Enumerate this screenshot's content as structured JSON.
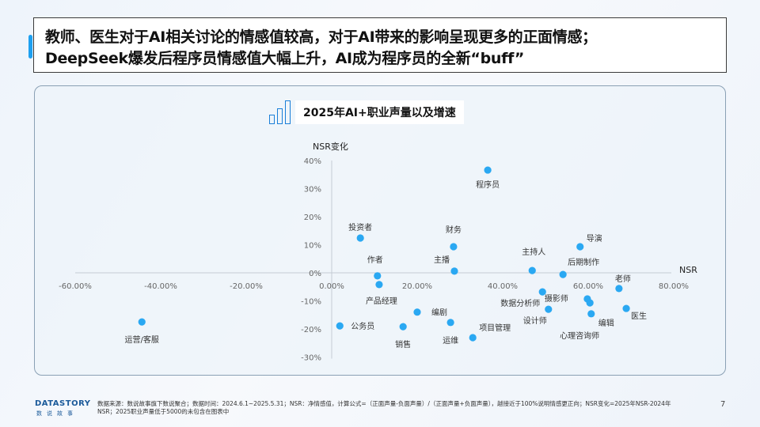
{
  "header": {
    "title_line1": "教师、医生对于AI相关讨论的情感值较高，对于AI带来的影响呈现更多的正面情感；",
    "title_line2": "DeepSeek爆发后程序员情感值大幅上升，AI成为程序员的全新“buff”"
  },
  "chart_data": {
    "type": "scatter",
    "title": "2025年AI+职业声量以及增速",
    "xlabel": "NSR",
    "ylabel": "NSR变化",
    "xlim": [
      -60,
      80
    ],
    "ylim": [
      -30,
      40
    ],
    "x_ticks": [
      "-60.00%",
      "-40.00%",
      "-20.00%",
      "0.00%",
      "20.00%",
      "40.00%",
      "60.00%",
      "80.00%"
    ],
    "x_tick_values": [
      -60,
      -40,
      -20,
      0,
      20,
      40,
      60,
      80
    ],
    "y_ticks": [
      "40%",
      "30%",
      "20%",
      "10%",
      "0%",
      "-10%",
      "-20%",
      "-30%"
    ],
    "y_tick_values": [
      40,
      30,
      20,
      10,
      0,
      -10,
      -20,
      -30
    ],
    "grid": false,
    "point_color": "#2aa8f2",
    "points": [
      {
        "label": "程序员",
        "x": 36.5,
        "y": 36.6
      },
      {
        "label": "投资者",
        "x": 6.7,
        "y": 12.4
      },
      {
        "label": "财务",
        "x": 28.5,
        "y": 9.3
      },
      {
        "label": "主播",
        "x": 28.7,
        "y": 0.6
      },
      {
        "label": "作者",
        "x": 10.7,
        "y": -1.1
      },
      {
        "label": "产品经理",
        "x": 11.1,
        "y": -4.2
      },
      {
        "label": "编剧",
        "x": 20.0,
        "y": -14.0
      },
      {
        "label": "公务员",
        "x": 1.9,
        "y": -18.9
      },
      {
        "label": "销售",
        "x": 16.7,
        "y": -19.2
      },
      {
        "label": "运维",
        "x": 27.8,
        "y": -17.7
      },
      {
        "label": "项目管理",
        "x": 33.0,
        "y": -23.1
      },
      {
        "label": "主持人",
        "x": 46.9,
        "y": 0.8
      },
      {
        "label": "后期制作",
        "x": 54.1,
        "y": -0.6
      },
      {
        "label": "导演",
        "x": 58.1,
        "y": 9.3
      },
      {
        "label": "数据分析师",
        "x": 49.3,
        "y": -6.8
      },
      {
        "label": "设计师",
        "x": 50.7,
        "y": -13.0
      },
      {
        "label": "摄影师",
        "x": 59.8,
        "y": -9.3
      },
      {
        "label": "心理咨询师",
        "x": 60.4,
        "y": -10.7
      },
      {
        "label": "编辑",
        "x": 60.7,
        "y": -14.6
      },
      {
        "label": "老师",
        "x": 67.2,
        "y": -5.6
      },
      {
        "label": "医生",
        "x": 68.9,
        "y": -12.7
      },
      {
        "label": "运营/客服",
        "x": -44.4,
        "y": -17.5
      }
    ]
  },
  "footer": {
    "logo": "DATASTORY",
    "logo_sub": "数说故事",
    "note": "数据来源：数说故事旗下数说聚合；数据时间：2024.6.1~2025.5.31；NSR：净情感值，计算公式=（正面声量-负面声量）/（正面声量+负面声量），越接近于100%说明情感更正向；NSR变化=2025年NSR-2024年NSR；2025职业声量低于5000的未包含在图表中",
    "page": "7"
  }
}
